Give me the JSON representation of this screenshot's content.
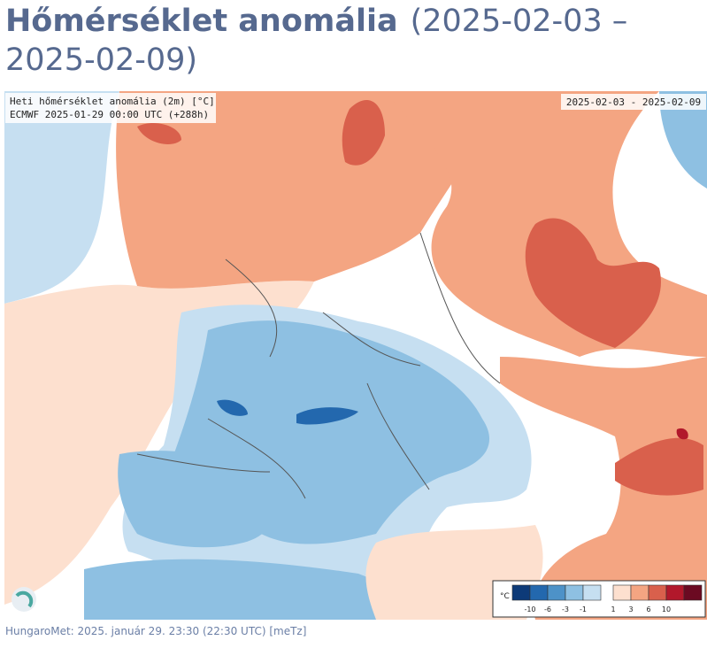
{
  "header": {
    "title": "Hőmérséklet anomália",
    "subtitle": "(2025-02-03 – 2025-02-09)"
  },
  "map": {
    "label_title": "Heti hőmérséklet anomália (2m) [°C]",
    "label_model": "ECMWF 2025-01-29 00:00 UTC (+288h)",
    "date_range": "2025-02-03 - 2025-02-09"
  },
  "legend": {
    "unit": "°C",
    "colors": [
      "#0d3a78",
      "#2368ae",
      "#4d92c8",
      "#8ec0e2",
      "#c6dff1",
      "#fde0cf",
      "#f4a582",
      "#d9604c",
      "#b2182b",
      "#6b0a22"
    ],
    "ticks": [
      "-10",
      "-6",
      "-3",
      "-1",
      "1",
      "3",
      "6",
      "10"
    ]
  },
  "footer": {
    "text": "HungaroMet: 2025. január 29. 23:30 (22:30  UTC)  [meTz]"
  }
}
